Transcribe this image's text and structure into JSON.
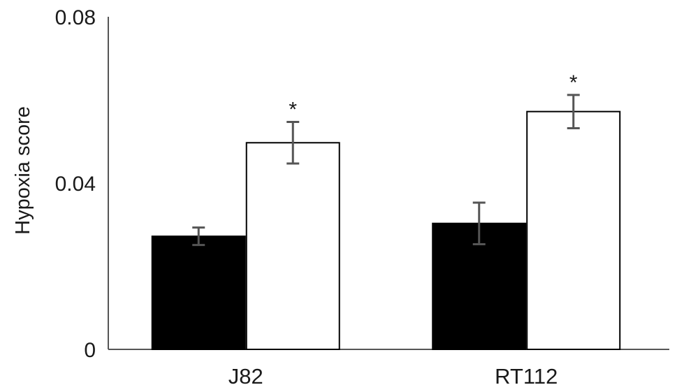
{
  "chart_data": {
    "type": "bar",
    "title": "",
    "xlabel": "",
    "ylabel": "Hypoxia score",
    "ylim": [
      0,
      0.08
    ],
    "yticks": [
      "0",
      "0.04",
      "0.08"
    ],
    "ytick_values": [
      0,
      0.04,
      0.08
    ],
    "grid": false,
    "categories": [
      "J82",
      "RT112"
    ],
    "series": [
      {
        "fill": "#000000",
        "values": [
          0.0272,
          0.0303
        ],
        "errors": [
          0.0021,
          0.005
        ],
        "annotations": [
          "",
          ""
        ]
      },
      {
        "fill": "#ffffff",
        "values": [
          0.0497,
          0.0572
        ],
        "errors": [
          0.005,
          0.004
        ],
        "annotations": [
          "*",
          "*"
        ]
      }
    ],
    "colors": {
      "axis": "#555555",
      "error_bar": "#555555",
      "bar_outline": "#000000"
    }
  }
}
